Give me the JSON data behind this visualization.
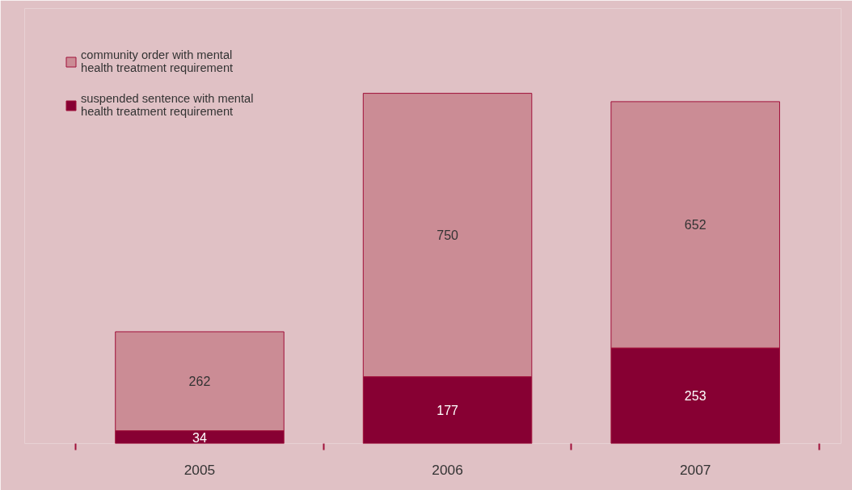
{
  "chart_data": {
    "type": "bar",
    "stacked": true,
    "categories": [
      "2005",
      "2006",
      "2007"
    ],
    "series": [
      {
        "name": "suspended sentence with mental health treatment requirement",
        "color": "#870033",
        "values": [
          34,
          177,
          253
        ]
      },
      {
        "name": "community order with mental health treatment requirement",
        "color": "#cb8c95",
        "values": [
          262,
          750,
          652
        ]
      }
    ],
    "data_labels": true,
    "legend": "top left",
    "grid": false
  }
}
